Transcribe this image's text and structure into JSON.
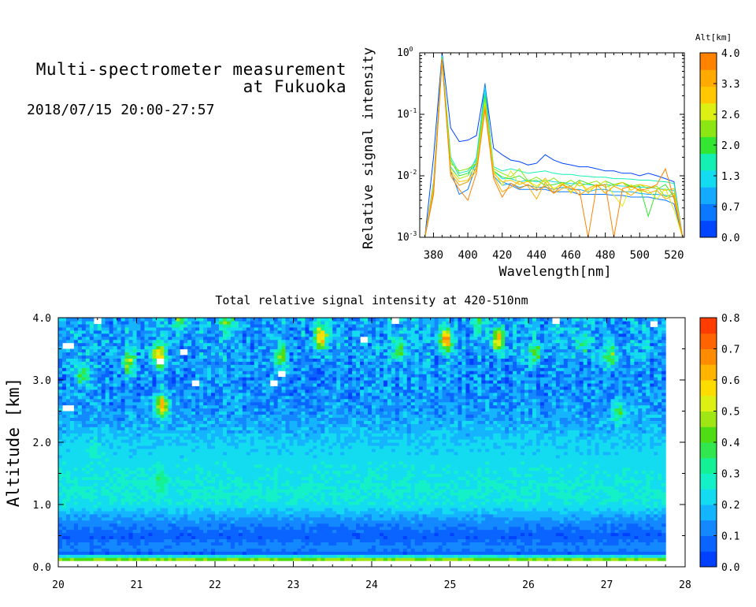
{
  "header": {
    "title_line1": "Multi-spectrometer measurement",
    "title_line2": "at Fukuoka",
    "subtitle": "2018/07/15 20:00-27:57"
  },
  "chart_data": [
    {
      "type": "line",
      "title": "",
      "xlabel": "Wavelength[nm]",
      "ylabel": "Relative signal intensity",
      "xlim": [
        372,
        526
      ],
      "ylim": [
        0.001,
        1
      ],
      "yscale": "log",
      "x_ticks": [
        380,
        400,
        420,
        440,
        460,
        480,
        500,
        520
      ],
      "y_ticks": [
        {
          "value": 0.001,
          "base": "10",
          "exp": "-3"
        },
        {
          "value": 0.01,
          "base": "10",
          "exp": "-2"
        },
        {
          "value": 0.1,
          "base": "10",
          "exp": "-1"
        },
        {
          "value": 1,
          "base": "10",
          "exp": "0"
        }
      ],
      "x": [
        375,
        380,
        385,
        390,
        395,
        400,
        405,
        410,
        415,
        420,
        425,
        430,
        435,
        440,
        445,
        450,
        455,
        460,
        465,
        470,
        475,
        480,
        485,
        490,
        495,
        500,
        505,
        510,
        515,
        520,
        525
      ],
      "colorbar": {
        "label": "Alt[km]",
        "tick_labels": [
          "4.0",
          "3.3",
          "2.6",
          "2.0",
          "1.3",
          "0.7",
          "0.0"
        ],
        "colors": [
          "#0046ff",
          "#0a78ff",
          "#14aaff",
          "#14dcf0",
          "#14f0b4",
          "#32e632",
          "#8ce614",
          "#dcf014",
          "#ffc800",
          "#ffaa00",
          "#ff8200"
        ]
      },
      "series": [
        {
          "color": "#0046ff",
          "values": [
            0.001,
            0.02,
            1.0,
            0.06,
            0.036,
            0.038,
            0.045,
            0.3,
            0.028,
            0.022,
            0.018,
            0.017,
            0.015,
            0.016,
            0.022,
            0.018,
            0.016,
            0.015,
            0.014,
            0.014,
            0.013,
            0.012,
            0.012,
            0.011,
            0.011,
            0.01,
            0.011,
            0.01,
            0.009,
            0.008,
            0.001
          ]
        },
        {
          "color": "#0a78ff",
          "values": [
            0.001,
            0.005,
            0.93,
            0.012,
            0.005,
            0.006,
            0.015,
            0.32,
            0.011,
            0.008,
            0.007,
            0.006,
            0.006,
            0.006,
            0.006,
            0.0055,
            0.0055,
            0.0055,
            0.005,
            0.005,
            0.005,
            0.005,
            0.0048,
            0.0048,
            0.0045,
            0.0045,
            0.0045,
            0.0042,
            0.004,
            0.0035,
            0.001
          ]
        },
        {
          "color": "#14aaff",
          "values": [
            0.001,
            0.006,
            0.9,
            0.011,
            0.007,
            0.008,
            0.017,
            0.28,
            0.01,
            0.007,
            0.0075,
            0.0065,
            0.007,
            0.0065,
            0.0065,
            0.006,
            0.0065,
            0.006,
            0.006,
            0.0055,
            0.006,
            0.006,
            0.0055,
            0.0055,
            0.0055,
            0.0052,
            0.005,
            0.005,
            0.0048,
            0.0045,
            0.001
          ]
        },
        {
          "color": "#14dcf0",
          "values": [
            0.001,
            0.008,
            0.88,
            0.014,
            0.009,
            0.01,
            0.02,
            0.27,
            0.012,
            0.009,
            0.009,
            0.008,
            0.0085,
            0.008,
            0.0085,
            0.008,
            0.0078,
            0.0075,
            0.0075,
            0.0072,
            0.007,
            0.0072,
            0.007,
            0.0068,
            0.0068,
            0.0065,
            0.0065,
            0.0062,
            0.006,
            0.0058,
            0.001
          ]
        },
        {
          "color": "#14f0b4",
          "values": [
            0.001,
            0.007,
            0.86,
            0.02,
            0.011,
            0.012,
            0.018,
            0.22,
            0.014,
            0.012,
            0.013,
            0.012,
            0.011,
            0.0115,
            0.012,
            0.011,
            0.0105,
            0.0105,
            0.01,
            0.0098,
            0.0095,
            0.0095,
            0.009,
            0.009,
            0.0088,
            0.0085,
            0.0085,
            0.0082,
            0.008,
            0.0075,
            0.001
          ]
        },
        {
          "color": "#32e632",
          "values": [
            0.001,
            0.006,
            0.84,
            0.018,
            0.01,
            0.011,
            0.016,
            0.2,
            0.012,
            0.0095,
            0.009,
            0.01,
            0.008,
            0.0085,
            0.007,
            0.0072,
            0.0078,
            0.0068,
            0.0085,
            0.0075,
            0.0068,
            0.0082,
            0.0072,
            0.0078,
            0.0065,
            0.0068,
            0.0022,
            0.006,
            0.0072,
            0.0045,
            0.001
          ]
        },
        {
          "color": "#8ce614",
          "values": [
            0.001,
            0.007,
            0.82,
            0.016,
            0.012,
            0.013,
            0.016,
            0.18,
            0.013,
            0.011,
            0.0095,
            0.013,
            0.0082,
            0.0095,
            0.0078,
            0.0092,
            0.0072,
            0.0085,
            0.0068,
            0.0075,
            0.0082,
            0.0065,
            0.0072,
            0.0078,
            0.0068,
            0.0072,
            0.0062,
            0.0068,
            0.0045,
            0.0052,
            0.001
          ]
        },
        {
          "color": "#dcf014",
          "values": [
            0.001,
            0.006,
            0.8,
            0.013,
            0.009,
            0.01,
            0.014,
            0.15,
            0.012,
            0.007,
            0.012,
            0.0072,
            0.0082,
            0.0068,
            0.0085,
            0.0062,
            0.0072,
            0.0055,
            0.0078,
            0.0058,
            0.0068,
            0.0082,
            0.0048,
            0.0032,
            0.0072,
            0.0055,
            0.0058,
            0.0042,
            0.0062,
            0.0028,
            0.001
          ]
        },
        {
          "color": "#ffc800",
          "values": [
            0.001,
            0.007,
            0.78,
            0.012,
            0.008,
            0.0085,
            0.013,
            0.14,
            0.011,
            0.008,
            0.0085,
            0.0072,
            0.0082,
            0.0062,
            0.0092,
            0.0058,
            0.0078,
            0.0052,
            0.0082,
            0.0052,
            0.0072,
            0.0052,
            0.0068,
            0.0078,
            0.0058,
            0.0072,
            0.0068,
            0.0062,
            0.0058,
            0.0062,
            0.001
          ]
        },
        {
          "color": "#ffaa00",
          "values": [
            0.001,
            0.006,
            0.76,
            0.011,
            0.007,
            0.008,
            0.012,
            0.13,
            0.01,
            0.0055,
            0.0065,
            0.0082,
            0.0068,
            0.0042,
            0.0078,
            0.0052,
            0.0062,
            0.0068,
            0.0048,
            0.0062,
            0.0072,
            0.0052,
            0.0068,
            0.0058,
            0.0048,
            0.0062,
            0.0052,
            0.0058,
            0.0042,
            0.0048,
            0.001
          ]
        },
        {
          "color": "#ff8200",
          "values": [
            0.001,
            0.005,
            0.74,
            0.01,
            0.006,
            0.004,
            0.011,
            0.12,
            0.009,
            0.0045,
            0.0075,
            0.0062,
            0.0072,
            0.0058,
            0.0068,
            0.0052,
            0.0072,
            0.0062,
            0.0058,
            0.001,
            0.0068,
            0.0072,
            0.001,
            0.0062,
            0.0068,
            0.0058,
            0.0062,
            0.0072,
            0.013,
            0.0042,
            0.001
          ]
        }
      ]
    },
    {
      "type": "heatmap",
      "title": "Total relative signal intensity at 420-510nm",
      "xlabel": "",
      "ylabel": "Altitude [km]",
      "xlim": [
        20,
        28
      ],
      "ylim": [
        0,
        4
      ],
      "data_time_range": [
        20,
        27.75
      ],
      "x_tick_labels": [
        "20",
        "21",
        "22",
        "23",
        "24",
        "25",
        "26",
        "27",
        "28"
      ],
      "y_tick_labels": [
        "0.0",
        "1.0",
        "2.0",
        "3.0",
        "4.0"
      ],
      "colorbar": {
        "range": [
          0,
          0.8
        ],
        "tick_labels": [
          "0.0",
          "0.1",
          "0.2",
          "0.3",
          "0.4",
          "0.5",
          "0.6",
          "0.7",
          "0.8"
        ],
        "colors": [
          "#0040ff",
          "#0a64ff",
          "#1488ff",
          "#14b4ff",
          "#14dcf0",
          "#14f0c8",
          "#14f096",
          "#32e650",
          "#50dc14",
          "#a0e614",
          "#dcf014",
          "#ffdc00",
          "#ffb400",
          "#ff8c00",
          "#ff6400",
          "#ff3c00"
        ]
      },
      "altitude_profile_km": [
        0.15,
        0.2,
        0.3,
        0.5,
        0.8,
        1.0,
        1.2,
        1.5,
        2.0,
        2.5,
        3.0,
        3.5,
        4.0
      ],
      "altitude_profile_intensity": [
        0.45,
        0.05,
        0.13,
        0.06,
        0.15,
        0.24,
        0.26,
        0.24,
        0.21,
        0.14,
        0.13,
        0.15,
        0.16
      ],
      "hotspots": [
        {
          "t": 21.28,
          "alt": 3.4,
          "value": 0.62
        },
        {
          "t": 21.32,
          "alt": 2.6,
          "value": 0.6
        },
        {
          "t": 21.3,
          "alt": 1.4,
          "value": 0.35
        },
        {
          "t": 20.9,
          "alt": 3.3,
          "value": 0.45
        },
        {
          "t": 23.35,
          "alt": 3.7,
          "value": 0.66
        },
        {
          "t": 24.95,
          "alt": 3.65,
          "value": 0.65
        },
        {
          "t": 25.62,
          "alt": 3.65,
          "value": 0.62
        },
        {
          "t": 22.85,
          "alt": 3.4,
          "value": 0.45
        },
        {
          "t": 24.35,
          "alt": 3.5,
          "value": 0.42
        },
        {
          "t": 26.1,
          "alt": 3.45,
          "value": 0.42
        },
        {
          "t": 27.05,
          "alt": 3.4,
          "value": 0.45
        },
        {
          "t": 22.15,
          "alt": 3.95,
          "value": 0.42
        },
        {
          "t": 20.3,
          "alt": 3.1,
          "value": 0.4
        },
        {
          "t": 27.15,
          "alt": 2.5,
          "value": 0.38
        },
        {
          "t": 20.45,
          "alt": 1.85,
          "value": 0.28
        },
        {
          "t": 21.55,
          "alt": 3.95,
          "value": 0.38
        },
        {
          "t": 26.7,
          "alt": 3.6,
          "value": 0.35
        },
        {
          "t": 25.35,
          "alt": 3.95,
          "value": 0.35
        }
      ],
      "missing_regions": [
        {
          "t": 20.12,
          "alt": 2.55
        },
        {
          "t": 20.12,
          "alt": 3.55
        },
        {
          "t": 21.3,
          "alt": 3.3
        },
        {
          "t": 21.6,
          "alt": 3.45
        },
        {
          "t": 21.75,
          "alt": 2.95
        },
        {
          "t": 22.75,
          "alt": 2.95
        },
        {
          "t": 22.85,
          "alt": 3.1
        },
        {
          "t": 20.5,
          "alt": 3.97
        },
        {
          "t": 23.9,
          "alt": 3.65
        },
        {
          "t": 26.35,
          "alt": 3.95
        },
        {
          "t": 27.6,
          "alt": 3.9
        },
        {
          "t": 24.3,
          "alt": 3.97
        }
      ]
    }
  ]
}
